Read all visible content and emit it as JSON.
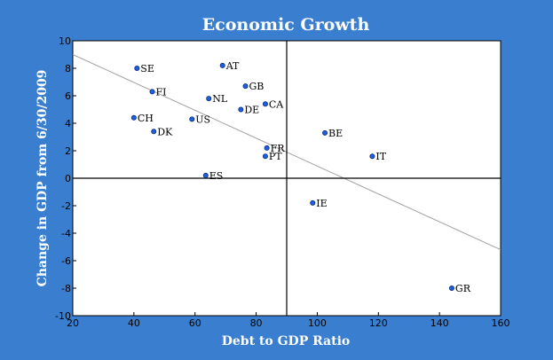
{
  "chart_data": {
    "type": "scatter",
    "title": "Economic Growth",
    "xlabel": "Debt to GDP Ratio",
    "ylabel": "Change in GDP from 6/30/2009",
    "xlim": [
      20,
      160
    ],
    "ylim": [
      -10,
      10
    ],
    "xticks": [
      20,
      40,
      60,
      80,
      100,
      120,
      140,
      160
    ],
    "yticks": [
      -10,
      -8,
      -6,
      -4,
      -2,
      0,
      2,
      4,
      6,
      8,
      10
    ],
    "reference_lines": {
      "x": 90,
      "y": 0
    },
    "trendline": {
      "x": [
        20,
        160
      ],
      "y": [
        9.0,
        -5.2
      ]
    },
    "grid": false,
    "legend": "none",
    "points": [
      {
        "label": "SE",
        "x": 41,
        "y": 8.0
      },
      {
        "label": "AT",
        "x": 69,
        "y": 8.2
      },
      {
        "label": "GB",
        "x": 76.5,
        "y": 6.7
      },
      {
        "label": "FI",
        "x": 46,
        "y": 6.3
      },
      {
        "label": "NL",
        "x": 64.5,
        "y": 5.8
      },
      {
        "label": "CA",
        "x": 83,
        "y": 5.4
      },
      {
        "label": "DE",
        "x": 75,
        "y": 5.0
      },
      {
        "label": "CH",
        "x": 40,
        "y": 4.4
      },
      {
        "label": "US",
        "x": 59,
        "y": 4.3
      },
      {
        "label": "DK",
        "x": 46.5,
        "y": 3.4
      },
      {
        "label": "BE",
        "x": 102.5,
        "y": 3.3
      },
      {
        "label": "FR",
        "x": 83.5,
        "y": 2.2
      },
      {
        "label": "PT",
        "x": 83,
        "y": 1.6
      },
      {
        "label": "IT",
        "x": 118,
        "y": 1.6
      },
      {
        "label": "ES",
        "x": 63.5,
        "y": 0.2
      },
      {
        "label": "IE",
        "x": 98.5,
        "y": -1.8
      },
      {
        "label": "GR",
        "x": 144,
        "y": -8.0
      }
    ],
    "colors": {
      "background": "#3a7fcf",
      "plot_background": "#ffffff",
      "point_fill": "#1f5fe0",
      "point_stroke": "#0a2a80",
      "trendline": "#a0a0a0",
      "reference_line": "#000000"
    }
  }
}
